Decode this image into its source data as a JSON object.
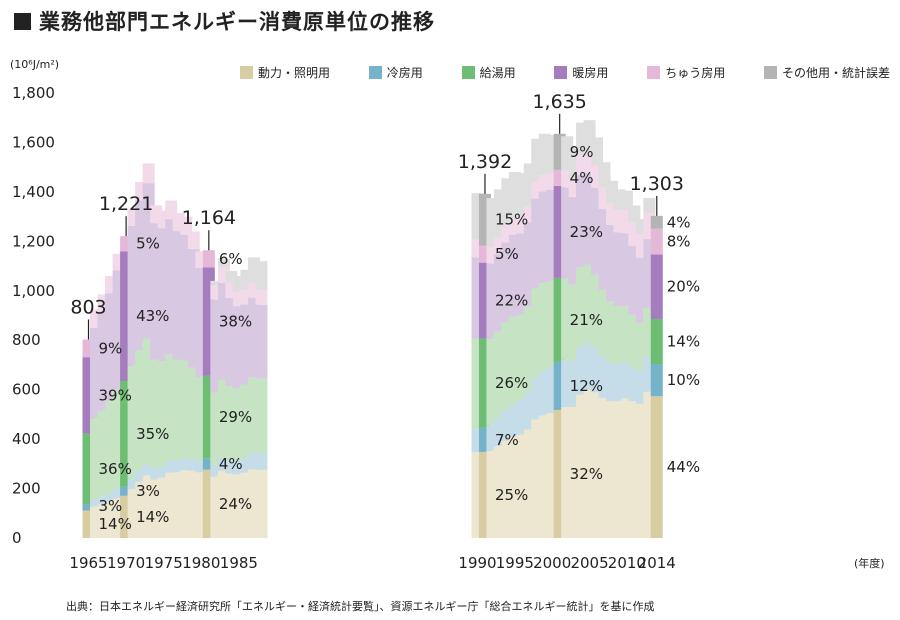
{
  "title": "業務他部門エネルギー消費原単位の推移",
  "unit_label": "(10⁶J/m²)",
  "source": "出典：日本エネルギー経済研究所「エネルギー・経済統計要覧」、資源エネルギー庁「総合エネルギー統計」を基に作成",
  "chart_data": {
    "type": "bar",
    "stacked": true,
    "ylim": [
      0,
      1800
    ],
    "yticks": [
      0,
      200,
      400,
      600,
      800,
      1000,
      1200,
      1400,
      1600,
      1800
    ],
    "ytick_labels": [
      "0",
      "200",
      "400",
      "600",
      "800",
      "1,000",
      "1,200",
      "1,400",
      "1,600",
      "1,800"
    ],
    "xtick_labels": [
      "1965",
      "1970",
      "1975",
      "1980",
      "1985",
      "1990",
      "1995",
      "2000",
      "2005",
      "2010",
      "2014"
    ],
    "xlabel_suffix": "(年度)",
    "legend_placement": "top",
    "series": [
      {
        "name": "動力・照明用",
        "color": "#d8cca3",
        "light": "#ede6d0"
      },
      {
        "name": "冷房用",
        "color": "#76b3cb",
        "light": "#c4dde8"
      },
      {
        "name": "給湯用",
        "color": "#6ebd74",
        "light": "#c6e4c4"
      },
      {
        "name": "暖房用",
        "color": "#a57cbd",
        "light": "#d8c8e2"
      },
      {
        "name": "ちゅう房用",
        "color": "#e6b8d8",
        "light": "#f2daea"
      },
      {
        "name": "その他用・統計誤差",
        "color": "#b4b4b4",
        "light": "#dedede"
      }
    ],
    "years": [
      1965,
      1966,
      1967,
      1968,
      1969,
      1970,
      1971,
      1972,
      1973,
      1974,
      1975,
      1976,
      1977,
      1978,
      1979,
      1980,
      1981,
      1982,
      1983,
      1984,
      1985,
      1986,
      1987,
      1988,
      1990,
      1991,
      1992,
      1993,
      1994,
      1995,
      1996,
      1997,
      1998,
      1999,
      2000,
      2001,
      2002,
      2003,
      2004,
      2005,
      2006,
      2007,
      2008,
      2009,
      2010,
      2011,
      2012,
      2013,
      2014
    ],
    "totals": [
      803,
      925,
      985,
      1060,
      1150,
      1221,
      1330,
      1440,
      1515,
      1345,
      1325,
      1365,
      1315,
      1300,
      1240,
      1160,
      1164,
      1040,
      1130,
      1080,
      1060,
      1085,
      1135,
      1120,
      1395,
      1392,
      1375,
      1410,
      1455,
      1480,
      1475,
      1515,
      1615,
      1635,
      1630,
      1635,
      1625,
      1580,
      1680,
      1690,
      1620,
      1520,
      1445,
      1410,
      1405,
      1345,
      1290,
      1375,
      1303
    ],
    "highlight_years": [
      1965,
      1970,
      1981,
      1991,
      2001,
      2014
    ],
    "totals_labels": [
      {
        "year": 1965,
        "label": "803"
      },
      {
        "year": 1970,
        "label": "1,221"
      },
      {
        "year": 1981,
        "label": "1,164"
      },
      {
        "year": 1991,
        "label": "1,392"
      },
      {
        "year": 2001,
        "label": "1,635"
      },
      {
        "year": 2014,
        "label": "1,303"
      }
    ],
    "shares": {
      "1965": [
        14,
        3,
        36,
        39,
        9,
        0
      ],
      "1970": [
        14,
        3,
        35,
        43,
        5,
        0
      ],
      "1981": [
        24,
        4,
        29,
        38,
        6,
        0
      ],
      "1991": [
        25,
        7,
        26,
        22,
        5,
        15
      ],
      "2001": [
        32,
        12,
        21,
        23,
        4,
        9
      ],
      "2014": [
        44,
        10,
        14,
        20,
        8,
        4
      ]
    },
    "share_labels": {
      "1965": [
        "14%",
        "3%",
        "36%",
        "39%",
        "9%",
        ""
      ],
      "1970": [
        "14%",
        "3%",
        "35%",
        "43%",
        "5%",
        ""
      ],
      "1981": [
        "24%",
        "4%",
        "29%",
        "38%",
        "6%",
        ""
      ],
      "1991": [
        "25%",
        "7%",
        "26%",
        "22%",
        "5%",
        "15%"
      ],
      "2001": [
        "32%",
        "12%",
        "21%",
        "23%",
        "4%",
        "9%"
      ],
      "2014": [
        "44%",
        "10%",
        "14%",
        "20%",
        "8%",
        "4%"
      ]
    }
  }
}
